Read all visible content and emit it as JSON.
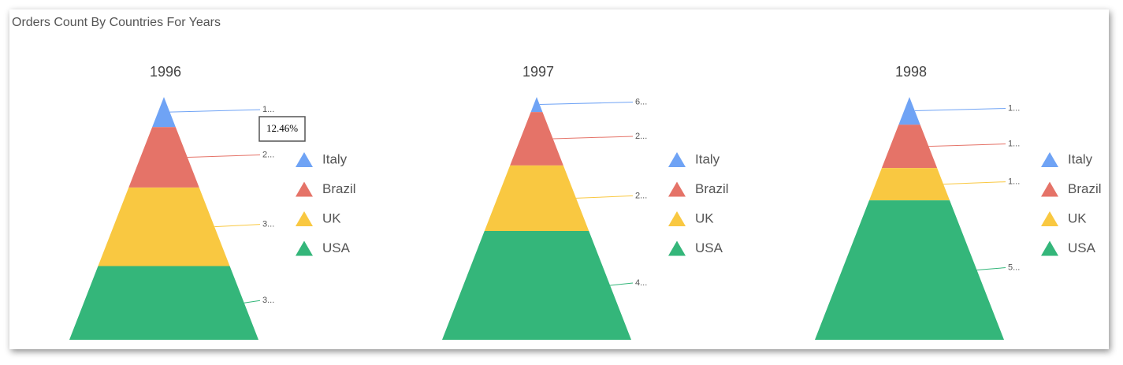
{
  "title": "Orders Count By Countries For Years",
  "chart_data": [
    {
      "type": "pyramid",
      "title": "1996",
      "categories": [
        "Italy",
        "Brazil",
        "UK",
        "USA"
      ],
      "values": [
        12.46,
        25,
        32.5,
        30.5
      ],
      "value_labels": [
        "1...",
        "2...",
        "3...",
        "3..."
      ],
      "colors": [
        "#6fa3f5",
        "#e57368",
        "#f9c841",
        "#34b67a"
      ],
      "tooltip": "12.46%"
    },
    {
      "type": "pyramid",
      "title": "1997",
      "categories": [
        "Italy",
        "Brazil",
        "UK",
        "USA"
      ],
      "values": [
        6.2,
        22,
        27,
        44.8
      ],
      "value_labels": [
        "6...",
        "2...",
        "2...",
        "4..."
      ],
      "colors": [
        "#6fa3f5",
        "#e57368",
        "#f9c841",
        "#34b67a"
      ]
    },
    {
      "type": "pyramid",
      "title": "1998",
      "categories": [
        "Italy",
        "Brazil",
        "UK",
        "USA"
      ],
      "values": [
        11.4,
        17.9,
        13.3,
        57.5
      ],
      "value_labels": [
        "1...",
        "1...",
        "1...",
        "5..."
      ],
      "colors": [
        "#6fa3f5",
        "#e57368",
        "#f9c841",
        "#34b67a"
      ]
    }
  ]
}
